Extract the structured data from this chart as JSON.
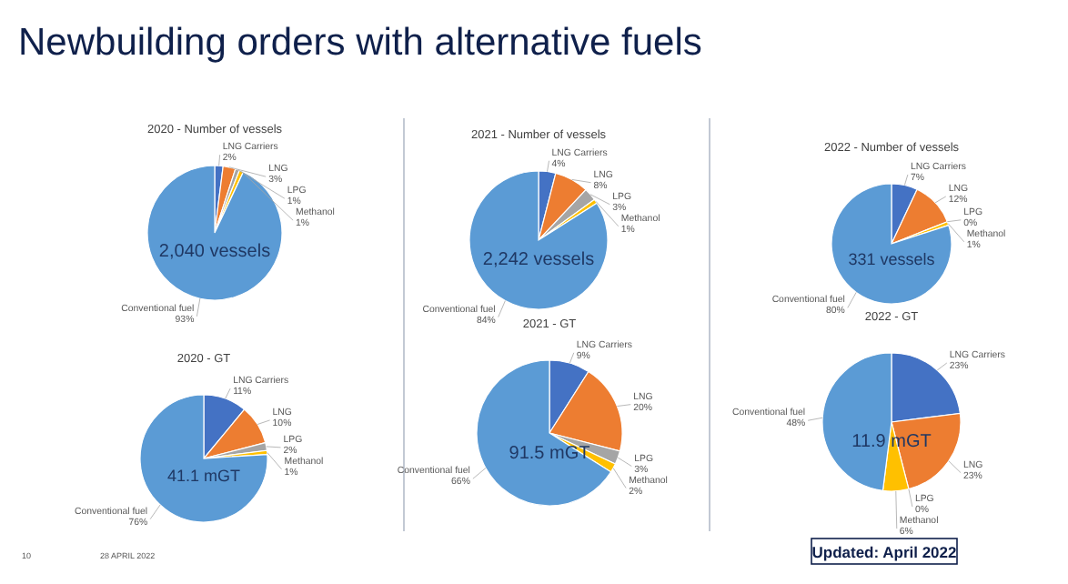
{
  "chart_data": [
    {
      "type": "other",
      "title": "Newbuilding orders with alternative fuels",
      "annotations": [
        "10",
        "28 APRIL 2022",
        "Updated: April 2022"
      ]
    },
    {
      "type": "pie",
      "title": "2020 - Number of vessels",
      "categories": [
        "LNG Carriers",
        "LNG",
        "LPG",
        "Methanol",
        "Conventional fuel"
      ],
      "values": [
        2,
        3,
        1,
        1,
        93
      ],
      "colors": [
        "#4472c4",
        "#ed7d31",
        "#a5a5a5",
        "#ffc000",
        "#5b9bd5"
      ],
      "value_labels": [
        "2%",
        "3%",
        "1%",
        "1%",
        "93%"
      ],
      "annotations": [
        "2,040 vessels"
      ]
    },
    {
      "type": "pie",
      "title": "2020 - GT",
      "categories": [
        "LNG Carriers",
        "LNG",
        "LPG",
        "Methanol",
        "Conventional fuel"
      ],
      "values": [
        11,
        10,
        2,
        1,
        76
      ],
      "colors": [
        "#4472c4",
        "#ed7d31",
        "#a5a5a5",
        "#ffc000",
        "#5b9bd5"
      ],
      "value_labels": [
        "11%",
        "10%",
        "2%",
        "1%",
        "76%"
      ],
      "annotations": [
        "41.1 mGT"
      ]
    },
    {
      "type": "pie",
      "title": "2021 - Number of vessels",
      "categories": [
        "LNG Carriers",
        "LNG",
        "LPG",
        "Methanol",
        "Conventional fuel"
      ],
      "values": [
        4,
        8,
        3,
        1,
        84
      ],
      "colors": [
        "#4472c4",
        "#ed7d31",
        "#a5a5a5",
        "#ffc000",
        "#5b9bd5"
      ],
      "value_labels": [
        "4%",
        "8%",
        "3%",
        "1%",
        "84%"
      ],
      "annotations": [
        "2,242 vessels"
      ]
    },
    {
      "type": "pie",
      "title": "2021 - GT",
      "categories": [
        "LNG Carriers",
        "LNG",
        "LPG",
        "Methanol",
        "Conventional fuel"
      ],
      "values": [
        9,
        20,
        3,
        2,
        66
      ],
      "colors": [
        "#4472c4",
        "#ed7d31",
        "#a5a5a5",
        "#ffc000",
        "#5b9bd5"
      ],
      "value_labels": [
        "9%",
        "20%",
        "3%",
        "2%",
        "66%"
      ],
      "annotations": [
        "91.5 mGT"
      ]
    },
    {
      "type": "pie",
      "title": "2022 - Number of vessels",
      "categories": [
        "LNG Carriers",
        "LNG",
        "LPG",
        "Methanol",
        "Conventional fuel"
      ],
      "values": [
        7,
        12,
        0,
        1,
        80
      ],
      "colors": [
        "#4472c4",
        "#ed7d31",
        "#a5a5a5",
        "#ffc000",
        "#5b9bd5"
      ],
      "value_labels": [
        "7%",
        "12%",
        "0%",
        "1%",
        "80%"
      ],
      "annotations": [
        "331 vessels"
      ]
    },
    {
      "type": "pie",
      "title": "2022 - GT",
      "categories": [
        "LNG Carriers",
        "LNG",
        "LPG",
        "Methanol",
        "Conventional fuel"
      ],
      "values": [
        23,
        23,
        0,
        6,
        48
      ],
      "colors": [
        "#4472c4",
        "#ed7d31",
        "#a5a5a5",
        "#ffc000",
        "#5b9bd5"
      ],
      "value_labels": [
        "23%",
        "23%",
        "0%",
        "6%",
        "48%"
      ],
      "annotations": [
        "11.9 mGT"
      ]
    }
  ]
}
